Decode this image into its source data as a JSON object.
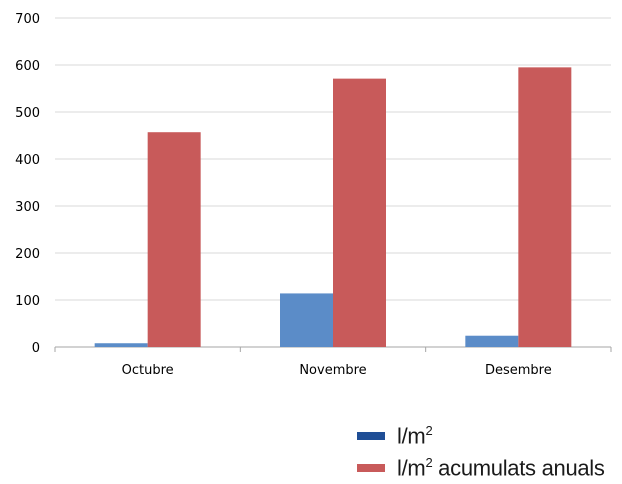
{
  "chart_data": {
    "type": "bar",
    "categories": [
      "Octubre",
      "Novembre",
      "Desembre"
    ],
    "series": [
      {
        "name": "l/m",
        "name_sup": "2",
        "color": "#5b8cc8",
        "legend_color": "#1f4e96",
        "values": [
          8,
          114,
          24
        ]
      },
      {
        "name": "l/m",
        "name_sup": "2",
        "name_suffix": " acumulats anuals",
        "color": "#c85a5a",
        "legend_color": "#c85a5a",
        "values": [
          457,
          571,
          595
        ]
      }
    ],
    "y_ticks": [
      "0",
      "100",
      "200",
      "300",
      "400",
      "500",
      "600",
      "700"
    ],
    "ylim": [
      0,
      700
    ],
    "grid": true,
    "legend_position": "bottom-right"
  }
}
